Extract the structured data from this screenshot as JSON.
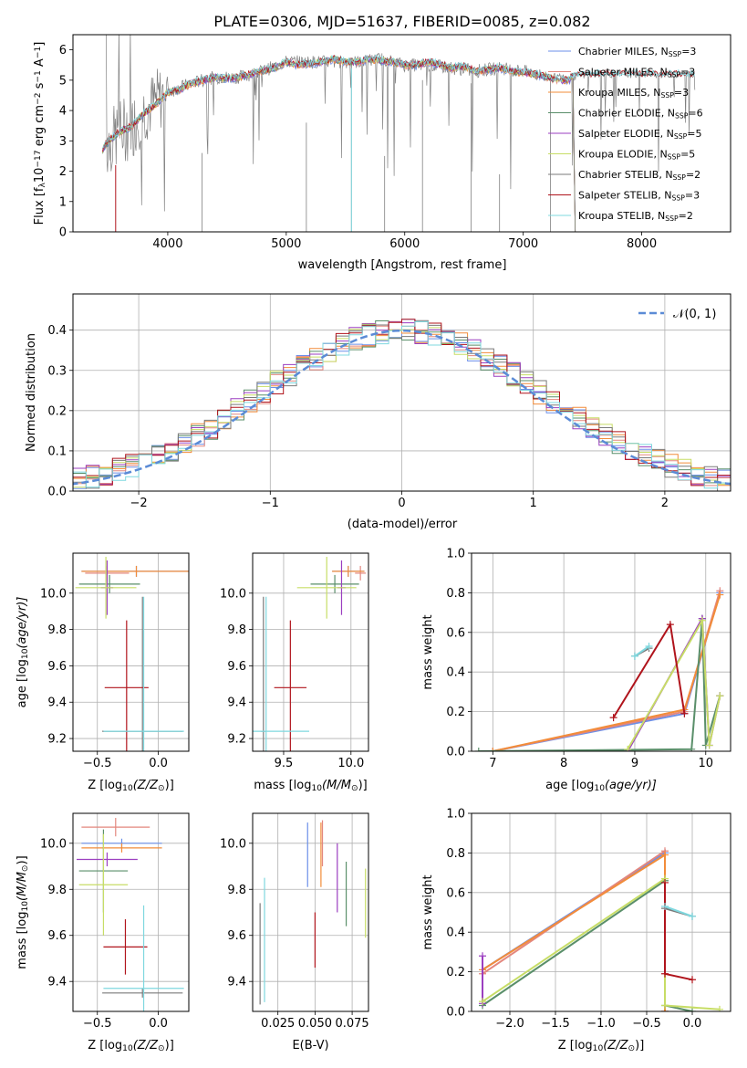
{
  "title": "PLATE=0306, MJD=51637, FIBERID=0085, z=0.082",
  "series_defs": [
    {
      "name": "Chabrier MILES",
      "nssp": "3",
      "color": "#6b8fe8"
    },
    {
      "name": "Salpeter MILES",
      "nssp": "3",
      "color": "#e3877e"
    },
    {
      "name": "Kroupa MILES",
      "nssp": "3",
      "color": "#f28c3a"
    },
    {
      "name": "Chabrier ELODIE",
      "nssp": "6",
      "color": "#5a8f6a"
    },
    {
      "name": "Salpeter ELODIE",
      "nssp": "5",
      "color": "#9b3fc0"
    },
    {
      "name": "Kroupa ELODIE",
      "nssp": "5",
      "color": "#c7dd66"
    },
    {
      "name": "Chabrier STELIB",
      "nssp": "2",
      "color": "#7a7a7a"
    },
    {
      "name": "Salpeter STELIB",
      "nssp": "3",
      "color": "#b0141c"
    },
    {
      "name": "Kroupa STELIB",
      "nssp": "2",
      "color": "#7fd8df"
    }
  ],
  "chart_data": [
    {
      "id": "spectrum",
      "type": "line",
      "xlabel": "wavelength [Angstrom, rest frame]",
      "ylabel": "Flux [f",
      "ylabel_parts": [
        "Flux [f",
        "λ",
        "10",
        "−17",
        " erg cm",
        "−2",
        " s",
        "−1",
        " A",
        "−1",
        "]"
      ],
      "legend_prefix_nssp": "N",
      "legend_sub": "SSP",
      "xlim": [
        3200,
        8750
      ],
      "ylim": [
        0,
        6.5
      ],
      "xticks": [
        4000,
        5000,
        6000,
        7000,
        8000
      ],
      "yticks": [
        0,
        1,
        2,
        3,
        4,
        5,
        6
      ],
      "grid": false,
      "legend": "right",
      "continuum_x": [
        3500,
        3600,
        3700,
        3800,
        3900,
        4000,
        4200,
        4400,
        4600,
        4800,
        5000,
        5200,
        5400,
        5600,
        5800,
        6000,
        6200,
        6400,
        6600,
        6800,
        7000,
        7200,
        7400,
        7600,
        7800,
        8000,
        8200,
        8400
      ],
      "continuum_y": [
        2.9,
        3.3,
        3.5,
        4.0,
        4.3,
        4.6,
        4.9,
        5.1,
        5.1,
        5.3,
        5.6,
        5.6,
        5.6,
        5.6,
        5.7,
        5.5,
        5.5,
        5.4,
        5.3,
        5.4,
        5.3,
        5.1,
        5.1,
        5.2,
        5.2,
        5.2,
        5.2,
        5.2
      ],
      "model_x": [
        3450,
        3500,
        3600,
        3700,
        3800,
        3900,
        4000,
        4100,
        4200,
        4300,
        4400,
        4500,
        4600,
        4700,
        4800,
        4900,
        5000,
        5100,
        5200,
        5300,
        5400,
        5500,
        5600,
        5700,
        5800,
        5900,
        6000,
        6100,
        6200,
        6300,
        6400,
        6500,
        6600,
        6700,
        6800,
        6900,
        7000,
        7100,
        7200,
        7300,
        7400
      ],
      "model_y": [
        2.7,
        3.0,
        3.3,
        3.5,
        3.9,
        4.2,
        4.6,
        4.7,
        4.9,
        5.0,
        5.1,
        5.05,
        5.1,
        5.2,
        5.3,
        5.4,
        5.6,
        5.5,
        5.55,
        5.6,
        5.7,
        5.6,
        5.6,
        5.7,
        5.65,
        5.6,
        5.5,
        5.5,
        5.6,
        5.5,
        5.4,
        5.45,
        5.3,
        5.35,
        5.4,
        5.3,
        5.25,
        5.2,
        5.1,
        5.0,
        5.0
      ]
    },
    {
      "id": "residuals",
      "type": "line",
      "xlabel": "(data-model)/error",
      "ylabel": "Normed distribution",
      "xlim": [
        -2.5,
        2.5
      ],
      "ylim": [
        0,
        0.49
      ],
      "xticks": [
        -2,
        -1,
        0,
        1,
        2
      ],
      "xticklabels": [
        "−2",
        "−1",
        "0",
        "1",
        "2"
      ],
      "yticks": [
        0.0,
        0.1,
        0.2,
        0.3,
        0.4
      ],
      "grid": true,
      "legend": "top-right",
      "legend_label": "𝒩(0, 1)",
      "gauss_mu": 0,
      "gauss_sigma": 1,
      "bin_width": 0.1
    },
    {
      "id": "age-vs-z",
      "type": "scatter",
      "xlabel": "Z [log",
      "xlabel_parts": [
        "Z [log",
        "10",
        "(Z/Z",
        "⊙",
        ")]"
      ],
      "ylabel_parts": [
        "age  [log",
        "10",
        "(age/yr)]"
      ],
      "xlim": [
        -0.7,
        0.25
      ],
      "ylim": [
        9.13,
        10.22
      ],
      "xticks": [
        -0.5,
        0.0
      ],
      "xticklabels": [
        "−0.5",
        "0.0"
      ],
      "yticks": [
        9.2,
        9.4,
        9.6,
        9.8,
        10.0
      ],
      "grid": true,
      "points": [
        {
          "series": 0,
          "x": -0.18,
          "y": 10.12,
          "xerr": 0.45,
          "yerr": 0.03
        },
        {
          "series": 1,
          "x": -0.42,
          "y": 10.11,
          "xerr": 0.18,
          "yerr": 0.04
        },
        {
          "series": 2,
          "x": -0.18,
          "y": 10.12,
          "xerr": 0.45,
          "yerr": 0.03
        },
        {
          "series": 3,
          "x": -0.4,
          "y": 10.05,
          "xerr": 0.25,
          "yerr": 0.05
        },
        {
          "series": 4,
          "x": -0.42,
          "y": 10.03,
          "xerr": 0.05,
          "yerr": 0.15
        },
        {
          "series": 5,
          "x": -0.43,
          "y": 10.03,
          "xerr": 0.25,
          "yerr": 0.17
        },
        {
          "series": 6,
          "x": -0.13,
          "y": 9.24,
          "xerr": 0.33,
          "yerr": 0.74
        },
        {
          "series": 7,
          "x": -0.26,
          "y": 9.48,
          "xerr": 0.18,
          "yerr": 0.37
        },
        {
          "series": 8,
          "x": -0.12,
          "y": 9.24,
          "xerr": 0.33,
          "yerr": 0.74
        }
      ]
    },
    {
      "id": "age-vs-mass",
      "type": "scatter",
      "xlabel_parts": [
        "mass [log",
        "10",
        "(M/M",
        "⊙",
        ")]"
      ],
      "xlim": [
        9.27,
        10.13
      ],
      "ylim": [
        9.13,
        10.22
      ],
      "xticks": [
        9.5,
        10.0
      ],
      "xticklabels": [
        "9.5",
        "10.0"
      ],
      "yticks": [
        9.2,
        9.4,
        9.6,
        9.8,
        10.0
      ],
      "grid": true,
      "points": [
        {
          "series": 0,
          "x": 9.98,
          "y": 10.12,
          "xerr": 0.12,
          "yerr": 0.03
        },
        {
          "series": 1,
          "x": 10.07,
          "y": 10.11,
          "xerr": 0.04,
          "yerr": 0.04
        },
        {
          "series": 2,
          "x": 9.98,
          "y": 10.12,
          "xerr": 0.12,
          "yerr": 0.03
        },
        {
          "series": 3,
          "x": 9.88,
          "y": 10.05,
          "xerr": 0.18,
          "yerr": 0.05
        },
        {
          "series": 4,
          "x": 9.93,
          "y": 10.03,
          "xerr": 0.03,
          "yerr": 0.15
        },
        {
          "series": 5,
          "x": 9.82,
          "y": 10.03,
          "xerr": 0.22,
          "yerr": 0.17
        },
        {
          "series": 6,
          "x": 9.35,
          "y": 9.24,
          "xerr": 0.02,
          "yerr": 0.74
        },
        {
          "series": 7,
          "x": 9.55,
          "y": 9.48,
          "xerr": 0.12,
          "yerr": 0.37
        },
        {
          "series": 8,
          "x": 9.37,
          "y": 9.24,
          "xerr": 0.32,
          "yerr": 0.74
        }
      ]
    },
    {
      "id": "mw-vs-age",
      "type": "line",
      "xlabel_parts": [
        "age  [log",
        "10",
        "(age/yr)]"
      ],
      "ylabel": "mass weight",
      "xlim": [
        6.7,
        10.35
      ],
      "ylim": [
        0.0,
        1.0
      ],
      "xticks": [
        7,
        8,
        9,
        10
      ],
      "yticks": [
        0.0,
        0.2,
        0.4,
        0.6,
        0.8,
        1.0
      ],
      "grid": true,
      "series": [
        {
          "series": 0,
          "x": [
            7.0,
            9.7,
            10.2
          ],
          "y": [
            0.0,
            0.19,
            0.8
          ]
        },
        {
          "series": 1,
          "x": [
            7.0,
            9.7,
            10.2
          ],
          "y": [
            0.0,
            0.2,
            0.81
          ]
        },
        {
          "series": 2,
          "x": [
            7.0,
            9.7,
            10.2
          ],
          "y": [
            0.0,
            0.21,
            0.79
          ]
        },
        {
          "series": 3,
          "x": [
            6.8,
            9.8,
            9.95,
            10.0,
            10.2
          ],
          "y": [
            0.0,
            0.01,
            0.67,
            0.03,
            0.28
          ]
        },
        {
          "series": 4,
          "x": [
            8.9,
            9.95,
            10.05,
            10.2
          ],
          "y": [
            0.0,
            0.67,
            0.03,
            0.28
          ]
        },
        {
          "series": 5,
          "x": [
            8.9,
            9.95,
            10.05,
            10.2
          ],
          "y": [
            0.01,
            0.66,
            0.03,
            0.28
          ]
        },
        {
          "series": 6,
          "x": [
            9.2,
            9.0
          ],
          "y": [
            0.52,
            0.48
          ]
        },
        {
          "series": 7,
          "x": [
            8.7,
            9.5,
            9.7
          ],
          "y": [
            0.17,
            0.64,
            0.19
          ]
        },
        {
          "series": 8,
          "x": [
            9.2,
            9.0
          ],
          "y": [
            0.53,
            0.48
          ]
        }
      ]
    },
    {
      "id": "mass-vs-z",
      "type": "scatter",
      "xlabel_parts": [
        "Z [log",
        "10",
        "(Z/Z",
        "⊙",
        ")]"
      ],
      "ylabel_parts": [
        "mass [log",
        "10",
        "(M/M",
        "⊙",
        ")]"
      ],
      "xlim": [
        -0.7,
        0.25
      ],
      "ylim": [
        9.27,
        10.13
      ],
      "xticks": [
        -0.5,
        0.0
      ],
      "xticklabels": [
        "−0.5",
        "0.0"
      ],
      "yticks": [
        9.4,
        9.6,
        9.8,
        10.0
      ],
      "grid": true,
      "points": [
        {
          "series": 0,
          "x": -0.3,
          "y": 10.0,
          "xerr": 0.33,
          "yerr": 0.02
        },
        {
          "series": 1,
          "x": -0.35,
          "y": 10.07,
          "xerr": 0.28,
          "yerr": 0.04
        },
        {
          "series": 2,
          "x": -0.3,
          "y": 9.98,
          "xerr": 0.33,
          "yerr": 0.02
        },
        {
          "series": 3,
          "x": -0.45,
          "y": 9.88,
          "xerr": 0.2,
          "yerr": 0.18
        },
        {
          "series": 4,
          "x": -0.42,
          "y": 9.93,
          "xerr": 0.25,
          "yerr": 0.03
        },
        {
          "series": 5,
          "x": -0.45,
          "y": 9.82,
          "xerr": 0.2,
          "yerr": 0.22
        },
        {
          "series": 6,
          "x": -0.13,
          "y": 9.35,
          "xerr": 0.33,
          "yerr": 0.02
        },
        {
          "series": 7,
          "x": -0.27,
          "y": 9.55,
          "xerr": 0.18,
          "yerr": 0.12
        },
        {
          "series": 8,
          "x": -0.12,
          "y": 9.37,
          "xerr": 0.33,
          "yerr": 0.36
        }
      ]
    },
    {
      "id": "mass-vs-ebv",
      "type": "scatter",
      "xlabel": "E(B-V)",
      "xlim": [
        0.008,
        0.086
      ],
      "ylim": [
        9.27,
        10.13
      ],
      "xticks": [
        0.025,
        0.05,
        0.075
      ],
      "xticklabels": [
        "0.025",
        "0.050",
        "0.075"
      ],
      "yticks": [
        9.4,
        9.6,
        9.8,
        10.0
      ],
      "grid": true,
      "points": [
        {
          "series": 0,
          "x": 0.045,
          "y": 9.95,
          "xerr": 0,
          "yerr": 0.14
        },
        {
          "series": 1,
          "x": 0.055,
          "y": 10.0,
          "xerr": 0,
          "yerr": 0.1
        },
        {
          "series": 2,
          "x": 0.054,
          "y": 9.95,
          "xerr": 0,
          "yerr": 0.14
        },
        {
          "series": 3,
          "x": 0.071,
          "y": 9.78,
          "xerr": 0,
          "yerr": 0.14
        },
        {
          "series": 4,
          "x": 0.065,
          "y": 9.85,
          "xerr": 0,
          "yerr": 0.15
        },
        {
          "series": 5,
          "x": 0.084,
          "y": 9.74,
          "xerr": 0,
          "yerr": 0.15
        },
        {
          "series": 6,
          "x": 0.013,
          "y": 9.52,
          "xerr": 0,
          "yerr": 0.22
        },
        {
          "series": 7,
          "x": 0.05,
          "y": 9.58,
          "xerr": 0,
          "yerr": 0.12
        },
        {
          "series": 8,
          "x": 0.016,
          "y": 9.58,
          "xerr": 0,
          "yerr": 0.27
        }
      ]
    },
    {
      "id": "mw-vs-z",
      "type": "line",
      "xlabel_parts": [
        "Z [log",
        "10",
        "(Z/Z",
        "⊙",
        ")]"
      ],
      "ylabel": "mass weight",
      "xlim": [
        -2.42,
        0.42
      ],
      "ylim": [
        0.0,
        1.0
      ],
      "xticks": [
        -2.0,
        -1.5,
        -1.0,
        -0.5,
        0.0
      ],
      "xticklabels": [
        "−2.0",
        "−1.5",
        "−1.0",
        "−0.5",
        "0.0"
      ],
      "yticks": [
        0.0,
        0.2,
        0.4,
        0.6,
        0.8,
        1.0
      ],
      "grid": true,
      "series": [
        {
          "series": 0,
          "x": [
            -2.3,
            -0.3,
            -0.3
          ],
          "y": [
            0.21,
            0.8,
            0.0
          ]
        },
        {
          "series": 1,
          "x": [
            -2.3,
            -0.3,
            -0.3
          ],
          "y": [
            0.19,
            0.81,
            0.0
          ]
        },
        {
          "series": 2,
          "x": [
            -2.3,
            -0.3,
            -0.3
          ],
          "y": [
            0.21,
            0.79,
            0.0
          ]
        },
        {
          "series": 3,
          "x": [
            -2.3,
            -0.3,
            -0.3,
            0.0
          ],
          "y": [
            0.03,
            0.66,
            0.03,
            0.0
          ]
        },
        {
          "series": 4,
          "x": [
            -2.3,
            -2.3
          ],
          "y": [
            0.28,
            0.04
          ]
        },
        {
          "series": 5,
          "x": [
            -2.3,
            -0.3,
            -0.3,
            0.3
          ],
          "y": [
            0.05,
            0.67,
            0.03,
            0.01
          ]
        },
        {
          "series": 6,
          "x": [
            -0.3,
            0.0
          ],
          "y": [
            0.52,
            0.48
          ]
        },
        {
          "series": 7,
          "x": [
            -0.3,
            -0.3,
            0.0
          ],
          "y": [
            0.65,
            0.19,
            0.16
          ]
        },
        {
          "series": 8,
          "x": [
            -0.3,
            0.0
          ],
          "y": [
            0.53,
            0.48
          ]
        }
      ]
    }
  ]
}
